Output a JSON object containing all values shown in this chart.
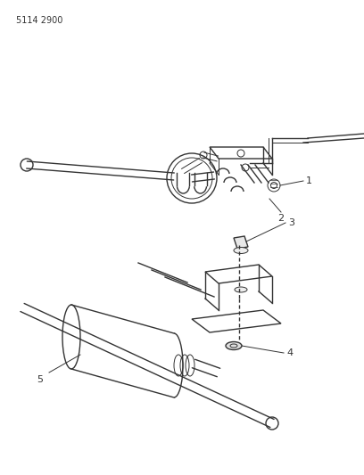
{
  "part_number": "5114 2900",
  "background_color": "#ffffff",
  "line_color": "#333333",
  "text_color": "#333333",
  "part_number_fontsize": 7,
  "callout_fontsize": 8
}
